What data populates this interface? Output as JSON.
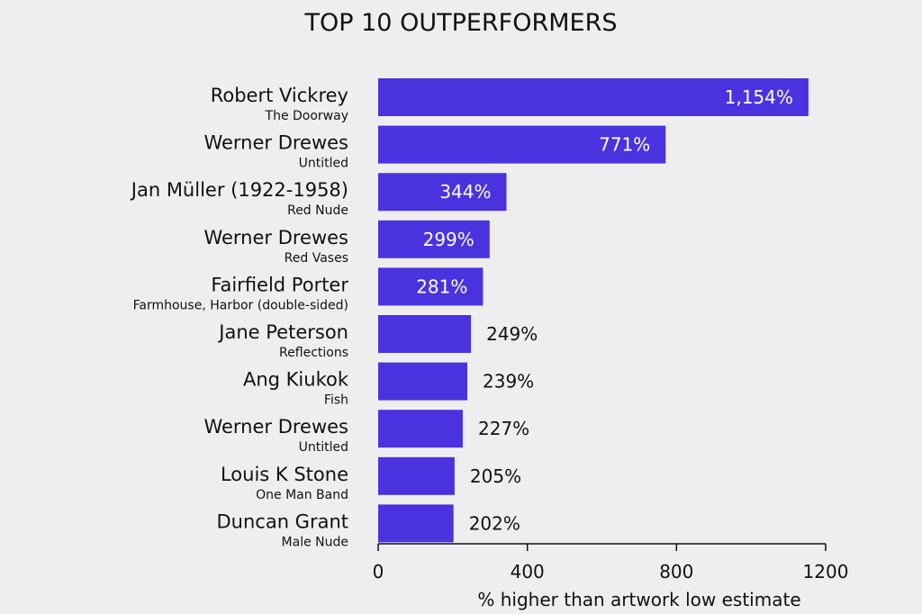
{
  "chart_data": {
    "type": "bar",
    "orientation": "horizontal",
    "title": "TOP 10 OUTPERFORMERS",
    "xlabel": "% higher than artwork low estimate",
    "xlim": [
      0,
      1200
    ],
    "xticks": [
      0,
      400,
      800,
      1200
    ],
    "bar_color": "#4a33df",
    "categories": [
      {
        "artist": "Robert Vickrey",
        "artwork": "The Doorway"
      },
      {
        "artist": "Werner Drewes",
        "artwork": "Untitled"
      },
      {
        "artist": "Jan Müller (1922-1958)",
        "artwork": "Red Nude"
      },
      {
        "artist": "Werner Drewes",
        "artwork": "Red Vases"
      },
      {
        "artist": "Fairfield Porter",
        "artwork": "Farmhouse, Harbor (double-sided)"
      },
      {
        "artist": "Jane Peterson",
        "artwork": "Reflections"
      },
      {
        "artist": "Ang Kiukok",
        "artwork": "Fish"
      },
      {
        "artist": "Werner Drewes",
        "artwork": "Untitled"
      },
      {
        "artist": "Louis K Stone",
        "artwork": "One Man Band"
      },
      {
        "artist": "Duncan Grant",
        "artwork": "Male Nude"
      }
    ],
    "values": [
      1154,
      771,
      344,
      299,
      281,
      249,
      239,
      227,
      205,
      202
    ],
    "value_labels": [
      "1,154%",
      "771%",
      "344%",
      "299%",
      "281%",
      "249%",
      "239%",
      "227%",
      "205%",
      "202%"
    ]
  }
}
